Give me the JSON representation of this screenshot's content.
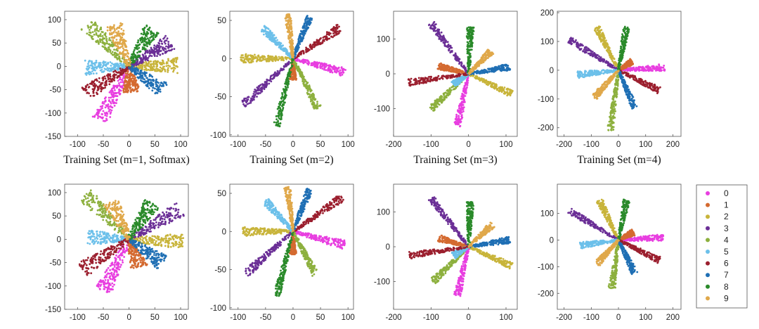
{
  "chart_data": [
    {
      "type": "scatter",
      "caption": "Training Set (m=1, Softmax)",
      "xticks": [
        -100,
        -50,
        0,
        50,
        100
      ],
      "yticks": [
        -150,
        -100,
        -50,
        0,
        50,
        100
      ],
      "xlim": [
        -125,
        115
      ],
      "ylim": [
        -150,
        118
      ],
      "rays": [
        [
          -55,
          -115
        ],
        [
          5,
          -55
        ],
        [
          95,
          2
        ],
        [
          80,
          52
        ],
        [
          -80,
          90
        ],
        [
          -85,
          -2
        ],
        [
          -85,
          -58
        ],
        [
          65,
          -50
        ],
        [
          45,
          82
        ],
        [
          -30,
          88
        ]
      ]
    },
    {
      "type": "scatter",
      "caption": "Training Set (m=2)",
      "xticks": [
        -100,
        -50,
        0,
        50,
        100
      ],
      "yticks": [
        -100,
        -50,
        0,
        50
      ],
      "xlim": [
        -115,
        110
      ],
      "ylim": [
        -102,
        62
      ],
      "rays": [
        [
          95,
          -18
        ],
        [
          0,
          -28
        ],
        [
          -95,
          0
        ],
        [
          -90,
          -60
        ],
        [
          45,
          -65
        ],
        [
          -55,
          40
        ],
        [
          85,
          40
        ],
        [
          30,
          55
        ],
        [
          -30,
          -88
        ],
        [
          -10,
          58
        ]
      ]
    },
    {
      "type": "scatter",
      "caption": "Training Set (m=3)",
      "xticks": [
        -200,
        -100,
        0,
        100
      ],
      "yticks": [
        -100,
        0,
        100
      ],
      "xlim": [
        -200,
        130
      ],
      "ylim": [
        -180,
        180
      ],
      "rays": [
        [
          -30,
          -150
        ],
        [
          -80,
          22
        ],
        [
          115,
          -58
        ],
        [
          -100,
          145
        ],
        [
          -100,
          -100
        ],
        [
          -40,
          -30
        ],
        [
          -160,
          -25
        ],
        [
          110,
          20
        ],
        [
          5,
          135
        ],
        [
          60,
          65
        ]
      ]
    },
    {
      "type": "scatter",
      "caption": "Training Set (m=4)",
      "xticks": [
        -200,
        -100,
        0,
        100,
        200
      ],
      "yticks": [
        -200,
        -100,
        0,
        100,
        200
      ],
      "xlim": [
        -225,
        230
      ],
      "ylim": [
        -230,
        205
      ],
      "rays": [
        [
          170,
          10
        ],
        [
          50,
          30
        ],
        [
          -80,
          150
        ],
        [
          -180,
          105
        ],
        [
          -30,
          -210
        ],
        [
          -150,
          -15
        ],
        [
          150,
          -70
        ],
        [
          60,
          -130
        ],
        [
          30,
          150
        ],
        [
          -90,
          -95
        ]
      ]
    },
    {
      "type": "scatter",
      "caption": "",
      "xticks": [
        -100,
        -50,
        0,
        50,
        100
      ],
      "yticks": [
        -150,
        -100,
        -50,
        0,
        50,
        100
      ],
      "xlim": [
        -125,
        115
      ],
      "ylim": [
        -150,
        118
      ],
      "rays": [
        [
          -50,
          -110
        ],
        [
          20,
          -60
        ],
        [
          105,
          -5
        ],
        [
          100,
          65
        ],
        [
          -85,
          95
        ],
        [
          -80,
          5
        ],
        [
          -90,
          -65
        ],
        [
          65,
          -50
        ],
        [
          45,
          78
        ],
        [
          -35,
          80
        ]
      ]
    },
    {
      "type": "scatter",
      "caption": "",
      "xticks": [
        -100,
        -50,
        0,
        50,
        100
      ],
      "yticks": [
        -100,
        -50,
        0,
        50
      ],
      "xlim": [
        -115,
        110
      ],
      "ylim": [
        -102,
        62
      ],
      "rays": [
        [
          95,
          -18
        ],
        [
          0,
          -30
        ],
        [
          -95,
          0
        ],
        [
          -85,
          -55
        ],
        [
          40,
          -55
        ],
        [
          -50,
          40
        ],
        [
          90,
          45
        ],
        [
          30,
          55
        ],
        [
          -30,
          -85
        ],
        [
          -10,
          58
        ]
      ]
    },
    {
      "type": "scatter",
      "caption": "",
      "xticks": [
        -200,
        -100,
        0,
        100
      ],
      "yticks": [
        -100,
        0,
        100
      ],
      "xlim": [
        -200,
        130
      ],
      "ylim": [
        -180,
        180
      ],
      "rays": [
        [
          -30,
          -140
        ],
        [
          -80,
          25
        ],
        [
          115,
          -55
        ],
        [
          -100,
          140
        ],
        [
          -95,
          -100
        ],
        [
          -40,
          -25
        ],
        [
          -160,
          -25
        ],
        [
          110,
          20
        ],
        [
          5,
          130
        ],
        [
          65,
          65
        ]
      ]
    },
    {
      "type": "scatter",
      "caption": "",
      "xticks": [
        -200,
        -100,
        0,
        100,
        200
      ],
      "yticks": [
        -200,
        -100,
        0,
        100
      ],
      "xlim": [
        -225,
        230
      ],
      "ylim": [
        -260,
        210
      ],
      "rays": [
        [
          165,
          10
        ],
        [
          55,
          30
        ],
        [
          -70,
          150
        ],
        [
          -180,
          110
        ],
        [
          -25,
          -185
        ],
        [
          -140,
          -20
        ],
        [
          150,
          -75
        ],
        [
          60,
          -125
        ],
        [
          30,
          150
        ],
        [
          -80,
          -90
        ]
      ]
    }
  ],
  "legend": {
    "labels": [
      "0",
      "1",
      "2",
      "3",
      "4",
      "5",
      "6",
      "7",
      "8",
      "9"
    ],
    "colors": [
      "#e83ee0",
      "#d46a30",
      "#c8b43a",
      "#6b2f96",
      "#8db03e",
      "#6cc0ea",
      "#9b1f2e",
      "#1f6fb4",
      "#2a8a2a",
      "#e0a84a"
    ]
  }
}
